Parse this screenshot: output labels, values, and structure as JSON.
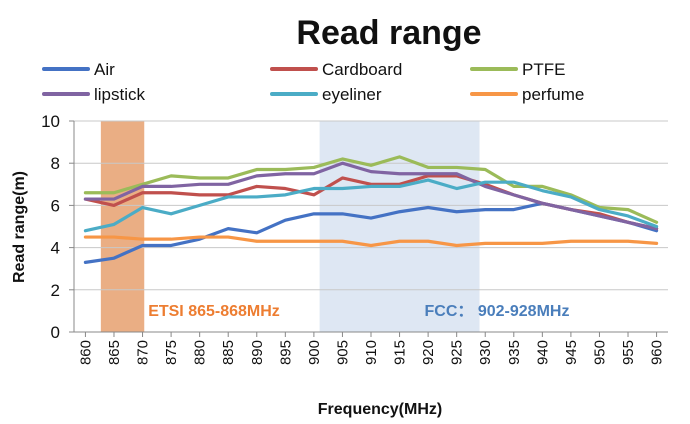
{
  "chart_data": {
    "type": "line",
    "title": "Read range",
    "xlabel": "Frequency(MHz)",
    "ylabel": "Read range(m)",
    "ylim": [
      0,
      10
    ],
    "yticks": [
      0,
      2,
      4,
      6,
      8,
      10
    ],
    "categories": [
      "860",
      "865",
      "870",
      "875",
      "880",
      "885",
      "890",
      "895",
      "900",
      "905",
      "910",
      "915",
      "920",
      "925",
      "930",
      "935",
      "940",
      "945",
      "950",
      "955",
      "960"
    ],
    "series": [
      {
        "name": "Air",
        "color": "#4472c4",
        "values": [
          3.3,
          3.5,
          4.1,
          4.1,
          4.4,
          4.9,
          4.7,
          5.3,
          5.6,
          5.6,
          5.4,
          5.7,
          5.9,
          5.7,
          5.8,
          5.8,
          6.1,
          5.8,
          5.5,
          5.2,
          4.8
        ]
      },
      {
        "name": "Cardboard",
        "color": "#c0504d",
        "values": [
          6.3,
          6.0,
          6.6,
          6.6,
          6.5,
          6.5,
          6.9,
          6.8,
          6.5,
          7.3,
          7.0,
          7.0,
          7.4,
          7.4,
          7.0,
          6.5,
          6.1,
          5.8,
          5.6,
          5.2,
          4.9
        ]
      },
      {
        "name": "PTFE",
        "color": "#9bbb59",
        "values": [
          6.6,
          6.6,
          7.0,
          7.4,
          7.3,
          7.3,
          7.7,
          7.7,
          7.8,
          8.2,
          7.9,
          8.3,
          7.8,
          7.8,
          7.7,
          6.9,
          6.9,
          6.5,
          5.9,
          5.8,
          5.2
        ]
      },
      {
        "name": "lipstick",
        "color": "#8064a2",
        "values": [
          6.3,
          6.3,
          6.9,
          6.9,
          7.0,
          7.0,
          7.4,
          7.5,
          7.5,
          8.0,
          7.6,
          7.5,
          7.5,
          7.5,
          6.9,
          6.5,
          6.1,
          5.8,
          5.5,
          5.2,
          4.9
        ]
      },
      {
        "name": "eyeliner",
        "color": "#4bacc6",
        "values": [
          4.8,
          5.1,
          5.9,
          5.6,
          6.0,
          6.4,
          6.4,
          6.5,
          6.8,
          6.8,
          6.9,
          6.9,
          7.2,
          6.8,
          7.1,
          7.1,
          6.7,
          6.4,
          5.8,
          5.5,
          5.0
        ]
      },
      {
        "name": "perfume",
        "color": "#f79646",
        "values": [
          4.5,
          4.5,
          4.4,
          4.4,
          4.5,
          4.5,
          4.3,
          4.3,
          4.3,
          4.3,
          4.1,
          4.3,
          4.3,
          4.1,
          4.2,
          4.2,
          4.2,
          4.3,
          4.3,
          4.3,
          4.2
        ]
      }
    ],
    "bands": [
      {
        "label": "ETSI 865-868MHz",
        "from": 865,
        "to": 868,
        "color": "#e8a577",
        "text_color": "#ed7d31"
      },
      {
        "label": "FCC： 902-928MHz",
        "from": 902,
        "to": 928,
        "color": "#dce6f2",
        "text_color": "#4a7ebb"
      }
    ],
    "legend_position": "top"
  }
}
